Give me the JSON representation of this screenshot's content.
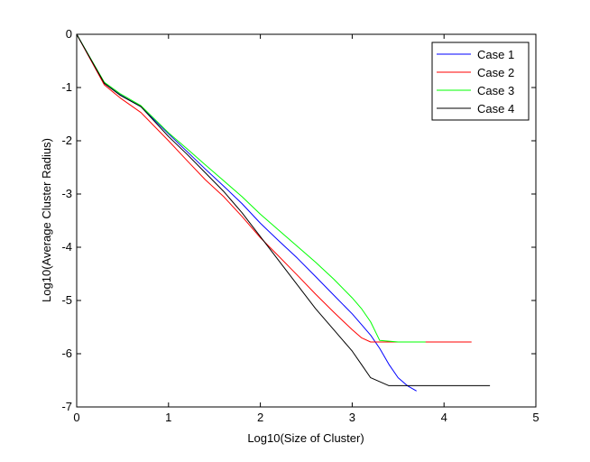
{
  "chart_data": {
    "type": "line",
    "title": "",
    "xlabel": "Log10(Size of Cluster)",
    "ylabel": "Log10(Average Cluster Radius)",
    "xlim": [
      0,
      5
    ],
    "ylim": [
      -7,
      0
    ],
    "x_ticks": [
      0,
      1,
      2,
      3,
      4,
      5
    ],
    "y_ticks": [
      -7,
      -6,
      -5,
      -4,
      -3,
      -2,
      -1,
      0
    ],
    "x_tick_labels": [
      "0",
      "1",
      "2",
      "3",
      "4",
      "5"
    ],
    "y_tick_labels": [
      "-7",
      "-6",
      "-5",
      "-4",
      "-3",
      "-2",
      "-1",
      "0"
    ],
    "grid": false,
    "legend_position": "top-right",
    "series": [
      {
        "name": "Case 1",
        "color": "#0000ff",
        "x": [
          0,
          0.301,
          0.477,
          0.699,
          1.0,
          1.2,
          1.4,
          1.6,
          1.8,
          2.0,
          2.2,
          2.4,
          2.6,
          2.8,
          3.0,
          3.1,
          3.2,
          3.3,
          3.4,
          3.5,
          3.6,
          3.7
        ],
        "y": [
          0,
          -0.92,
          -1.14,
          -1.36,
          -1.87,
          -2.2,
          -2.53,
          -2.85,
          -3.18,
          -3.55,
          -3.88,
          -4.2,
          -4.55,
          -4.9,
          -5.25,
          -5.45,
          -5.65,
          -5.9,
          -6.2,
          -6.45,
          -6.6,
          -6.7
        ]
      },
      {
        "name": "Case 2",
        "color": "#ff0000",
        "x": [
          0,
          0.301,
          0.477,
          0.699,
          1.0,
          1.2,
          1.4,
          1.6,
          1.8,
          2.0,
          2.2,
          2.4,
          2.6,
          2.8,
          3.0,
          3.1,
          3.2,
          3.3,
          3.5,
          4.3
        ],
        "y": [
          0,
          -0.95,
          -1.2,
          -1.47,
          -2.0,
          -2.37,
          -2.73,
          -3.05,
          -3.42,
          -3.82,
          -4.17,
          -4.52,
          -4.88,
          -5.22,
          -5.55,
          -5.7,
          -5.78,
          -5.78,
          -5.78,
          -5.78
        ]
      },
      {
        "name": "Case 3",
        "color": "#00ff00",
        "x": [
          0,
          0.301,
          0.477,
          0.699,
          1.0,
          1.2,
          1.4,
          1.6,
          1.8,
          2.0,
          2.2,
          2.4,
          2.6,
          2.8,
          3.0,
          3.1,
          3.2,
          3.3,
          3.5,
          3.8
        ],
        "y": [
          0,
          -0.9,
          -1.12,
          -1.34,
          -1.85,
          -2.15,
          -2.45,
          -2.75,
          -3.05,
          -3.38,
          -3.68,
          -3.98,
          -4.28,
          -4.6,
          -4.95,
          -5.15,
          -5.4,
          -5.75,
          -5.78,
          -5.78
        ]
      },
      {
        "name": "Case 4",
        "color": "#000000",
        "x": [
          0,
          0.301,
          0.477,
          0.699,
          1.0,
          1.2,
          1.4,
          1.6,
          1.8,
          2.0,
          2.2,
          2.4,
          2.6,
          2.8,
          3.0,
          3.1,
          3.2,
          3.4,
          4.0,
          4.5
        ],
        "y": [
          0,
          -0.92,
          -1.15,
          -1.36,
          -1.92,
          -2.25,
          -2.6,
          -2.95,
          -3.35,
          -3.8,
          -4.25,
          -4.7,
          -5.15,
          -5.55,
          -5.95,
          -6.2,
          -6.45,
          -6.6,
          -6.6,
          -6.6
        ]
      }
    ]
  }
}
